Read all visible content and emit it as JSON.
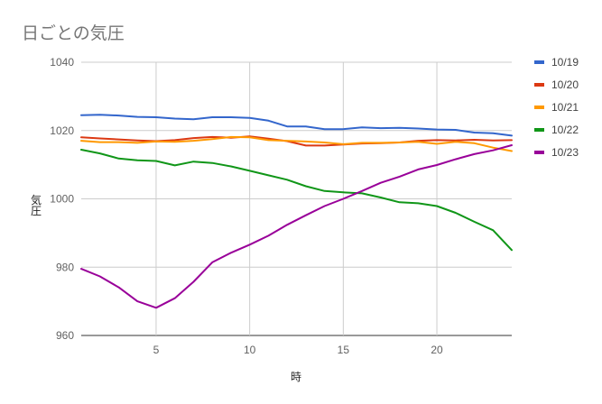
{
  "chart_data": {
    "type": "line",
    "title": "日ごとの気圧",
    "xlabel": "時",
    "ylabel": "気圧",
    "xlim": [
      1,
      24
    ],
    "ylim": [
      960,
      1040
    ],
    "x_ticks": [
      5,
      10,
      15,
      20
    ],
    "y_ticks": [
      960,
      980,
      1000,
      1020,
      1040
    ],
    "grid": true,
    "legend_position": "right",
    "x": [
      1,
      2,
      3,
      4,
      5,
      6,
      7,
      8,
      9,
      10,
      11,
      12,
      13,
      14,
      15,
      16,
      17,
      18,
      19,
      20,
      21,
      22,
      23,
      24
    ],
    "series": [
      {
        "name": "10/19",
        "color": "#3366cc",
        "values": [
          1024.5,
          1024.6,
          1024.4,
          1024.0,
          1023.9,
          1023.5,
          1023.3,
          1023.9,
          1023.9,
          1023.7,
          1022.9,
          1021.2,
          1021.2,
          1020.4,
          1020.4,
          1020.9,
          1020.7,
          1020.8,
          1020.6,
          1020.3,
          1020.2,
          1019.4,
          1019.2,
          1018.5
        ]
      },
      {
        "name": "10/20",
        "color": "#dc3912",
        "values": [
          1018.0,
          1017.7,
          1017.4,
          1017.1,
          1016.9,
          1017.2,
          1017.8,
          1018.1,
          1017.9,
          1018.3,
          1017.6,
          1016.9,
          1015.6,
          1015.6,
          1015.9,
          1016.2,
          1016.3,
          1016.5,
          1017.0,
          1017.2,
          1017.1,
          1017.3,
          1017.1,
          1017.2
        ]
      },
      {
        "name": "10/21",
        "color": "#ff9900",
        "values": [
          1017.0,
          1016.6,
          1016.6,
          1016.4,
          1016.8,
          1016.7,
          1017.0,
          1017.5,
          1018.1,
          1018.0,
          1017.2,
          1017.0,
          1016.8,
          1016.5,
          1016.0,
          1016.4,
          1016.4,
          1016.5,
          1016.7,
          1016.1,
          1016.7,
          1016.3,
          1015.0,
          1014.0
        ]
      },
      {
        "name": "10/22",
        "color": "#109618",
        "values": [
          1014.4,
          1013.3,
          1011.8,
          1011.3,
          1011.1,
          1009.8,
          1010.9,
          1010.5,
          1009.5,
          1008.2,
          1006.9,
          1005.6,
          1003.7,
          1002.3,
          1001.9,
          1001.6,
          1000.4,
          999.0,
          998.7,
          997.9,
          995.9,
          993.3,
          990.8,
          985.0
        ]
      },
      {
        "name": "10/23",
        "color": "#990099",
        "values": [
          979.5,
          977.3,
          974.1,
          970.0,
          968.1,
          970.9,
          975.7,
          981.4,
          984.2,
          986.6,
          989.2,
          992.4,
          995.2,
          997.9,
          1000.0,
          1002.3,
          1004.7,
          1006.5,
          1008.6,
          1009.9,
          1011.6,
          1013.1,
          1014.2,
          1015.7
        ]
      }
    ]
  }
}
